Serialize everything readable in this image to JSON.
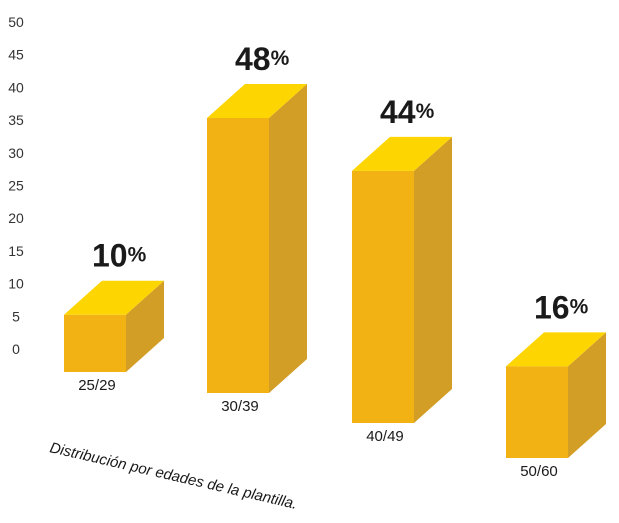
{
  "chart_data": {
    "type": "bar",
    "categories": [
      "25/29",
      "30/39",
      "40/49",
      "50/60"
    ],
    "values": [
      10,
      48,
      44,
      16
    ],
    "data_labels": [
      "10",
      "48",
      "44",
      "16"
    ],
    "value_suffix": "%",
    "yticks": [
      "50",
      "45",
      "40",
      "35",
      "30",
      "25",
      "20",
      "15",
      "10",
      "5",
      "0"
    ],
    "caption": "Distribución por edades de la plantilla.",
    "title": "",
    "xlabel": "",
    "ylabel": "",
    "ylim": [
      0,
      50
    ],
    "grid": false,
    "legend": "none",
    "colors": {
      "front": "#F2B213",
      "top": "#FDD500",
      "side": "#D39E26",
      "text": "#1a1a1a"
    }
  }
}
